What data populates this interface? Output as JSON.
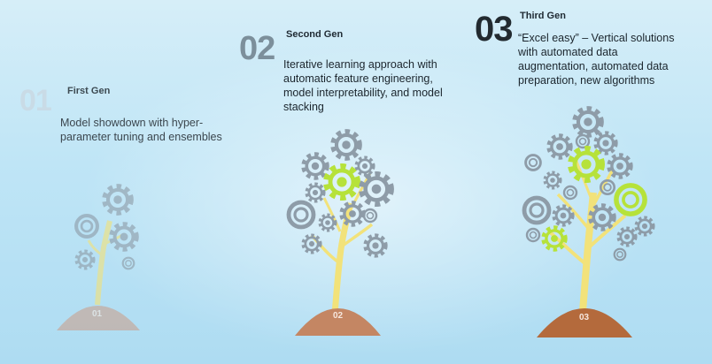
{
  "generations": [
    {
      "number": "01",
      "title": "First Gen",
      "description": "Model showdown with hyper-parameter tuning and ensembles",
      "mound_label": "01"
    },
    {
      "number": "02",
      "title": "Second Gen",
      "description": "Iterative learning approach with automatic feature engineering, model interpretability, and model stacking",
      "mound_label": "02"
    },
    {
      "number": "03",
      "title": "Third Gen",
      "description": "“Excel easy” – Vertical solutions with automated data augmentation, automated data preparation, new algorithms",
      "mound_label": "03"
    }
  ],
  "colors": {
    "trunk": "#f2e27a",
    "gear_grey": "#8e9ca8",
    "gear_lime": "#b6e23a",
    "mound_1": "#c9a392",
    "mound_2": "#c48663",
    "mound_3": "#b46a3c"
  }
}
